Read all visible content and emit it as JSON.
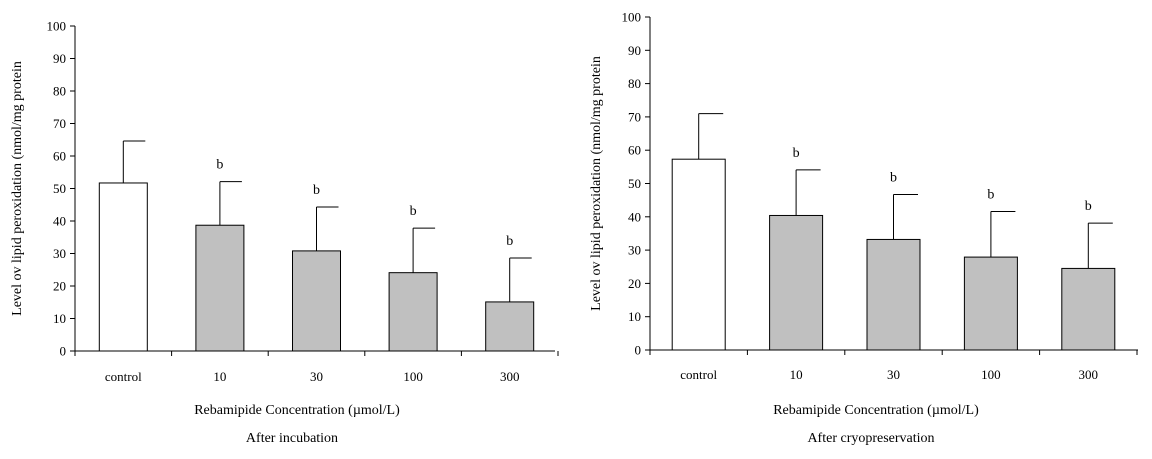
{
  "chart_data": [
    {
      "type": "bar",
      "categories": [
        "control",
        "10",
        "30",
        "100",
        "300"
      ],
      "values": [
        51.7,
        38.7,
        30.8,
        24.1,
        15.1
      ],
      "error_upper": [
        64.6,
        52.1,
        44.3,
        37.8,
        28.6
      ],
      "significance": [
        "",
        "b",
        "b",
        "b",
        "b"
      ],
      "bar_colors": [
        "#ffffff",
        "#c0c0c0",
        "#c0c0c0",
        "#c0c0c0",
        "#c0c0c0"
      ],
      "ylim": [
        0,
        100
      ],
      "yticks": [
        "0",
        "10",
        "20",
        "30",
        "40",
        "50",
        "60",
        "70",
        "80",
        "90",
        "100"
      ],
      "ylabel": "Level ov lipid peroxidation (nmol/mg protein",
      "xlabel": "Rebamipide Concentration (µmol/L)",
      "caption": "After incubation",
      "grid": false
    },
    {
      "type": "bar",
      "categories": [
        "control",
        "10",
        "30",
        "100",
        "300"
      ],
      "values": [
        57.3,
        40.4,
        33.2,
        27.9,
        24.5
      ],
      "error_upper": [
        71.0,
        54.1,
        46.7,
        41.6,
        38.1
      ],
      "significance": [
        "",
        "b",
        "b",
        "b",
        "b"
      ],
      "bar_colors": [
        "#ffffff",
        "#c0c0c0",
        "#c0c0c0",
        "#c0c0c0",
        "#c0c0c0"
      ],
      "ylim": [
        0,
        100
      ],
      "yticks": [
        "0",
        "10",
        "20",
        "30",
        "40",
        "50",
        "60",
        "70",
        "80",
        "90",
        "100"
      ],
      "ylabel": "Level ov lipid peroxidation (nmol/mg protein",
      "xlabel": "Rebamipide Concentration (µmol/L)",
      "caption": "After cryopreservation",
      "grid": false
    }
  ]
}
